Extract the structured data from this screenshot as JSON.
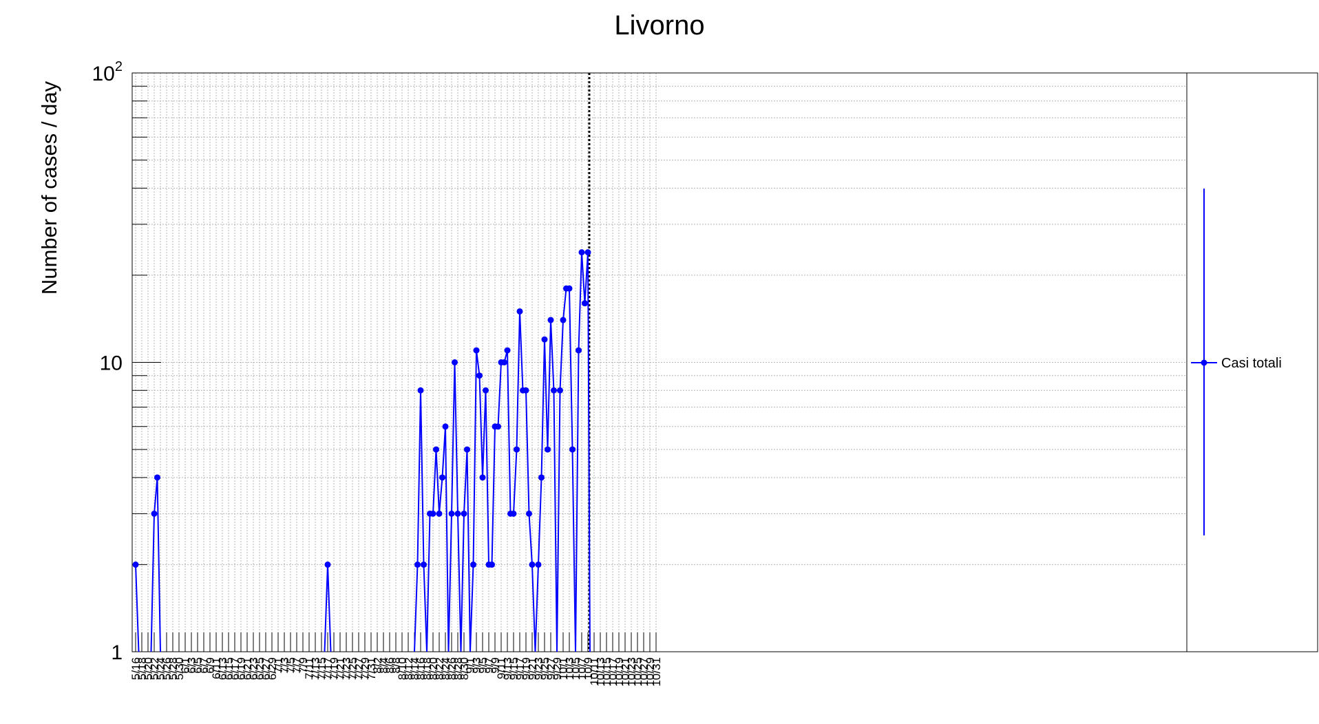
{
  "chart_data": {
    "type": "line",
    "title": "Livorno",
    "xlabel": "",
    "ylabel": "Number of cases / day",
    "yscale": "log",
    "ylim": [
      1,
      100
    ],
    "y_tick_labels": [
      {
        "value": 100,
        "base": "10",
        "exp": "2"
      },
      {
        "value": 10,
        "base": "10",
        "exp": ""
      },
      {
        "value": 1,
        "base": "1",
        "exp": ""
      }
    ],
    "grid": true,
    "legend_position": "right",
    "x_categories": [
      "5/16",
      "5/18",
      "5/20",
      "5/22",
      "5/24",
      "5/26",
      "5/28",
      "5/30",
      "6/1",
      "6/3",
      "6/5",
      "6/7",
      "6/9",
      "6/11",
      "6/13",
      "6/15",
      "6/17",
      "6/19",
      "6/21",
      "6/23",
      "6/25",
      "6/27",
      "6/29",
      "7/1",
      "7/3",
      "7/5",
      "7/7",
      "7/9",
      "7/11",
      "7/13",
      "7/15",
      "7/17",
      "7/19",
      "7/21",
      "7/23",
      "7/25",
      "7/27",
      "7/29",
      "7/31",
      "8/2",
      "8/4",
      "8/6",
      "8/8",
      "8/10",
      "8/12",
      "8/14",
      "8/16",
      "8/18",
      "8/20",
      "8/22",
      "8/24",
      "8/26",
      "8/28",
      "8/30",
      "9/1",
      "9/3",
      "9/5",
      "9/7",
      "9/9",
      "9/11",
      "9/13",
      "9/15",
      "9/17",
      "9/19",
      "9/21",
      "9/23",
      "9/25",
      "9/27",
      "9/29",
      "10/1",
      "10/3",
      "10/5",
      "10/7",
      "10/9",
      "10/11",
      "10/13",
      "10/15",
      "10/17",
      "10/19",
      "10/21",
      "10/23",
      "10/25",
      "10/27",
      "10/29",
      "10/31"
    ],
    "marker_date": "10/9",
    "series": [
      {
        "name": "Casi totali",
        "color": "#0000ff",
        "points": [
          [
            "5/16",
            2
          ],
          [
            "5/22",
            3
          ],
          [
            "5/23",
            4
          ],
          [
            "7/17",
            2
          ],
          [
            "8/15",
            2
          ],
          [
            "8/16",
            8
          ],
          [
            "8/17",
            2
          ],
          [
            "8/19",
            3
          ],
          [
            "8/20",
            3
          ],
          [
            "8/21",
            5
          ],
          [
            "8/22",
            3
          ],
          [
            "8/23",
            4
          ],
          [
            "8/24",
            6
          ],
          [
            "8/26",
            3
          ],
          [
            "8/27",
            10
          ],
          [
            "8/28",
            3
          ],
          [
            "8/30",
            3
          ],
          [
            "8/31",
            5
          ],
          [
            "9/2",
            2
          ],
          [
            "9/3",
            11
          ],
          [
            "9/4",
            9
          ],
          [
            "9/5",
            4
          ],
          [
            "9/6",
            8
          ],
          [
            "9/7",
            2
          ],
          [
            "9/8",
            2
          ],
          [
            "9/9",
            6
          ],
          [
            "9/10",
            6
          ],
          [
            "9/11",
            10
          ],
          [
            "9/12",
            10
          ],
          [
            "9/13",
            11
          ],
          [
            "9/14",
            3
          ],
          [
            "9/15",
            3
          ],
          [
            "9/16",
            5
          ],
          [
            "9/17",
            15
          ],
          [
            "9/18",
            8
          ],
          [
            "9/19",
            8
          ],
          [
            "9/20",
            3
          ],
          [
            "9/21",
            2
          ],
          [
            "9/23",
            2
          ],
          [
            "9/24",
            4
          ],
          [
            "9/25",
            12
          ],
          [
            "9/26",
            5
          ],
          [
            "9/27",
            14
          ],
          [
            "9/28",
            8
          ],
          [
            "9/30",
            8
          ],
          [
            "10/1",
            14
          ],
          [
            "10/2",
            18
          ],
          [
            "10/3",
            18
          ],
          [
            "10/4",
            5
          ],
          [
            "10/6",
            11
          ],
          [
            "10/7",
            24
          ],
          [
            "10/8",
            16
          ],
          [
            "10/9",
            24
          ]
        ]
      }
    ]
  }
}
